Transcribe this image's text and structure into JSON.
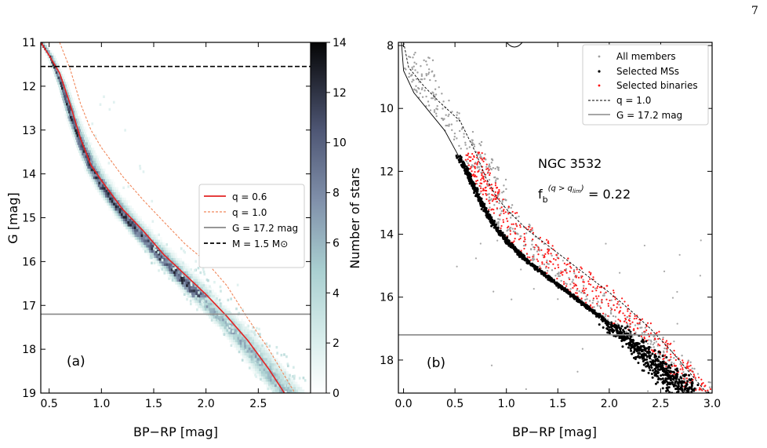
{
  "page_number": "7",
  "chart_data": [
    {
      "type": "heatmap",
      "panel_label": "(a)",
      "xlabel": "BP−RP [mag]",
      "ylabel": "G [mag]",
      "xlim": [
        0.42,
        3.0
      ],
      "ylim": [
        19,
        11
      ],
      "y_inverted": true,
      "xticks": [
        0.5,
        1.0,
        1.5,
        2.0,
        2.5
      ],
      "xtick_labels": [
        "0.5",
        "1.0",
        "1.5",
        "2.0",
        "2.5"
      ],
      "yticks": [
        11,
        12,
        13,
        14,
        15,
        16,
        17,
        18,
        19
      ],
      "ytick_labels": [
        "11",
        "12",
        "13",
        "14",
        "15",
        "16",
        "17",
        "18",
        "19"
      ],
      "colorbar": {
        "label": "Number of stars",
        "range": [
          0,
          14
        ],
        "ticks": [
          0,
          2,
          4,
          6,
          8,
          10,
          12,
          14
        ],
        "tick_labels": [
          "0",
          "2",
          "4",
          "6",
          "8",
          "10",
          "12",
          "14"
        ]
      },
      "legend_position": "center-right",
      "legend": [
        {
          "label": "q = 0.6",
          "color": "#e32222",
          "style": "solid"
        },
        {
          "label": "q = 1.0",
          "color": "#f0875a",
          "style": "dashed"
        },
        {
          "label": "G = 17.2 mag",
          "color": "#888888",
          "style": "solid"
        },
        {
          "label": "M = 1.5 M⊙",
          "color": "#000000",
          "style": "dashed"
        }
      ],
      "series": [
        {
          "name": "q = 0.6",
          "points": [
            [
              0.42,
              11.0
            ],
            [
              0.5,
              11.3
            ],
            [
              0.6,
              11.7
            ],
            [
              0.7,
              12.4
            ],
            [
              0.8,
              13.2
            ],
            [
              0.9,
              13.8
            ],
            [
              1.0,
              14.15
            ],
            [
              1.2,
              14.8
            ],
            [
              1.4,
              15.3
            ],
            [
              1.6,
              15.85
            ],
            [
              1.8,
              16.3
            ],
            [
              2.0,
              16.75
            ],
            [
              2.2,
              17.25
            ],
            [
              2.4,
              17.8
            ],
            [
              2.6,
              18.45
            ],
            [
              2.75,
              19.0
            ]
          ]
        },
        {
          "name": "q = 1.0",
          "points": [
            [
              0.6,
              11.0
            ],
            [
              0.7,
              11.6
            ],
            [
              0.8,
              12.4
            ],
            [
              0.9,
              13.0
            ],
            [
              1.0,
              13.4
            ],
            [
              1.2,
              14.05
            ],
            [
              1.4,
              14.6
            ],
            [
              1.6,
              15.1
            ],
            [
              1.8,
              15.6
            ],
            [
              2.0,
              16.0
            ],
            [
              2.2,
              16.55
            ],
            [
              2.4,
              17.3
            ],
            [
              2.6,
              18.0
            ],
            [
              2.85,
              19.0
            ]
          ]
        }
      ],
      "main_sequence": [
        [
          0.42,
          11.0
        ],
        [
          0.5,
          11.3
        ],
        [
          0.6,
          11.9
        ],
        [
          0.7,
          12.7
        ],
        [
          0.8,
          13.35
        ],
        [
          0.9,
          13.9
        ],
        [
          1.0,
          14.3
        ],
        [
          1.2,
          14.95
        ],
        [
          1.4,
          15.5
        ],
        [
          1.6,
          16.0
        ],
        [
          1.8,
          16.5
        ],
        [
          2.0,
          17.0
        ],
        [
          2.2,
          17.45
        ],
        [
          2.4,
          18.0
        ],
        [
          2.6,
          18.6
        ],
        [
          2.75,
          19.0
        ]
      ],
      "hlines": [
        {
          "label": "G = 17.2 mag",
          "y": 17.2,
          "color": "#888888"
        },
        {
          "label": "M = 1.5 M⊙",
          "y": 11.55,
          "color": "#000000"
        }
      ]
    },
    {
      "type": "scatter",
      "panel_label": "(b)",
      "xlabel": "BP−RP [mag]",
      "xlim": [
        -0.05,
        3.0
      ],
      "ylim": [
        19.05,
        7.9
      ],
      "y_inverted": true,
      "xticks": [
        0.0,
        0.5,
        1.0,
        1.5,
        2.0,
        2.5,
        3.0
      ],
      "xtick_labels": [
        "0.0",
        "0.5",
        "1.0",
        "1.5",
        "2.0",
        "2.5",
        "3.0"
      ],
      "yticks": [
        8,
        10,
        12,
        14,
        16,
        18
      ],
      "ytick_labels": [
        "8",
        "10",
        "12",
        "14",
        "16",
        "18"
      ],
      "annotation_title": "NGC 3532",
      "annotation_fb_value": " = 0.22",
      "legend_position": "top-right",
      "legend": [
        {
          "label": "All members",
          "color": "#9e9e9e",
          "marker": "dot"
        },
        {
          "label": "Selected MSs",
          "color": "#000000",
          "marker": "dot"
        },
        {
          "label": "Selected binaries",
          "color": "#ff0000",
          "marker": "dot"
        },
        {
          "label": "q  = 1.0",
          "color": "#000000",
          "style": "dashed"
        },
        {
          "label": "G = 17.2 mag",
          "color": "#888888",
          "style": "solid"
        }
      ],
      "ms_ridge": [
        [
          -0.02,
          7.9
        ],
        [
          0.0,
          8.8
        ],
        [
          0.1,
          9.5
        ],
        [
          0.25,
          10.1
        ],
        [
          0.4,
          10.7
        ],
        [
          0.5,
          11.3
        ],
        [
          0.6,
          11.9
        ],
        [
          0.7,
          12.6
        ],
        [
          0.8,
          13.3
        ],
        [
          0.9,
          13.8
        ],
        [
          1.0,
          14.2
        ],
        [
          1.2,
          14.85
        ],
        [
          1.4,
          15.35
        ],
        [
          1.6,
          15.85
        ],
        [
          1.8,
          16.35
        ],
        [
          2.0,
          16.85
        ],
        [
          2.2,
          17.35
        ],
        [
          2.4,
          17.95
        ],
        [
          2.6,
          18.55
        ],
        [
          2.75,
          19.05
        ]
      ],
      "q1_curve": [
        [
          0.0,
          7.9
        ],
        [
          0.05,
          8.7
        ],
        [
          0.2,
          9.3
        ],
        [
          0.35,
          9.8
        ],
        [
          0.55,
          10.4
        ],
        [
          0.7,
          11.4
        ],
        [
          0.8,
          12.2
        ],
        [
          0.9,
          12.8
        ],
        [
          1.0,
          13.2
        ],
        [
          1.2,
          13.85
        ],
        [
          1.4,
          14.35
        ],
        [
          1.6,
          14.85
        ],
        [
          1.8,
          15.35
        ],
        [
          2.0,
          15.85
        ],
        [
          2.2,
          16.4
        ],
        [
          2.4,
          17.0
        ],
        [
          2.6,
          17.7
        ],
        [
          2.95,
          19.05
        ]
      ],
      "hline": {
        "label": "G = 17.2 mag",
        "y": 17.2
      }
    }
  ]
}
